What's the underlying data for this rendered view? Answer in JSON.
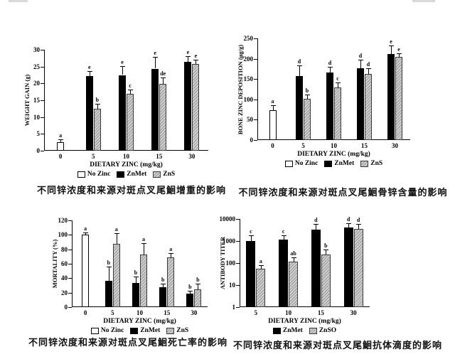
{
  "charts": [
    {
      "id": "weight-gain",
      "type": "bar",
      "yscale": "linear",
      "ylim": [
        0,
        30
      ],
      "yticks": [
        0,
        5,
        10,
        15,
        20,
        25,
        30
      ],
      "ylabel": "WEIGHT GAIN (g)",
      "xlabel": "DIETARY ZINC (mg/kg)",
      "categories": [
        "0",
        "5",
        "10",
        "15",
        "30"
      ],
      "series": [
        {
          "name": "No Zinc",
          "style": "white",
          "values": [
            2.5,
            null,
            null,
            null,
            null
          ],
          "error_tops": [
            3.4,
            null,
            null,
            null,
            null
          ],
          "letters": [
            "a",
            "",
            "",
            "",
            ""
          ]
        },
        {
          "name": "ZnMet",
          "style": "black",
          "values": [
            null,
            22.1,
            22.5,
            24.4,
            26.4
          ],
          "error_tops": [
            null,
            23.6,
            25.2,
            27.8,
            28.1
          ],
          "letters": [
            "",
            "e",
            "e",
            "e",
            "e"
          ]
        },
        {
          "name": "ZnS",
          "style": "hatch",
          "values": [
            null,
            12.5,
            16.9,
            19.9,
            25.7
          ],
          "error_tops": [
            null,
            13.9,
            18.2,
            21.7,
            27.0
          ],
          "letters": [
            "",
            "b",
            "c",
            "de",
            "e"
          ]
        }
      ],
      "legend_position": "bottom",
      "grid": false,
      "caption": "不同锌浓度和来源对斑点叉尾鮰增重的影响"
    },
    {
      "id": "bone-zinc-deposition",
      "type": "bar",
      "yscale": "linear",
      "ylim": [
        0,
        250
      ],
      "yticks": [
        0,
        50,
        100,
        150,
        200,
        250
      ],
      "ylabel": "BONE ZINC DEPOSITION (µg/g)",
      "xlabel": "DIETARY ZINC (mg/kg)",
      "categories": [
        "0",
        "5",
        "10",
        "15",
        "30"
      ],
      "series": [
        {
          "name": "No Zinc",
          "style": "white",
          "values": [
            73,
            null,
            null,
            null,
            null
          ],
          "error_tops": [
            85,
            null,
            null,
            null,
            null
          ],
          "letters": [
            "a",
            "",
            "",
            "",
            ""
          ]
        },
        {
          "name": "ZnMet",
          "style": "black",
          "values": [
            null,
            157,
            166,
            177,
            211
          ],
          "error_tops": [
            null,
            184,
            180,
            198,
            232
          ],
          "letters": [
            "",
            "d",
            "d",
            "d",
            "e"
          ]
        },
        {
          "name": "ZnS",
          "style": "hatch",
          "values": [
            null,
            102,
            129,
            163,
            204
          ],
          "error_tops": [
            null,
            112,
            141,
            176,
            213
          ],
          "letters": [
            "",
            "b",
            "c",
            "d",
            "e"
          ]
        }
      ],
      "legend_position": "bottom",
      "grid": false,
      "caption": "不同锌浓度和来源对斑点叉尾鮰骨锌含量的影响"
    },
    {
      "id": "mortality",
      "type": "bar",
      "yscale": "linear",
      "ylim": [
        0,
        120
      ],
      "yticks": [
        0,
        20,
        40,
        60,
        80,
        100,
        120
      ],
      "ylabel": "MORTALITY (%)",
      "xlabel": "DIETARY ZINC (mg/kg)",
      "categories": [
        "0",
        "5",
        "10",
        "15",
        "30"
      ],
      "series": [
        {
          "name": "No Zinc",
          "style": "white",
          "values": [
            100,
            null,
            null,
            null,
            null
          ],
          "error_tops": [
            103,
            null,
            null,
            null,
            null
          ],
          "letters": [
            "a",
            "",
            "",
            "",
            ""
          ]
        },
        {
          "name": "ZnMet",
          "style": "black",
          "values": [
            null,
            36,
            33,
            28,
            19
          ],
          "error_tops": [
            null,
            56,
            42,
            32,
            23
          ],
          "letters": [
            "",
            "b",
            "b",
            "b",
            "b"
          ]
        },
        {
          "name": "ZnS",
          "style": "hatch",
          "values": [
            null,
            88,
            73,
            69,
            25
          ],
          "error_tops": [
            null,
            102,
            89,
            75,
            32
          ],
          "letters": [
            "",
            "a",
            "a",
            "a",
            "b"
          ]
        }
      ],
      "legend_position": "bottom",
      "grid": false,
      "caption": "不同锌浓度和来源对斑点叉尾鮰死亡率的影响"
    },
    {
      "id": "antibody-titer",
      "type": "bar",
      "yscale": "log",
      "ylim": [
        1,
        10000
      ],
      "yticks": [
        1,
        10,
        100,
        1000,
        10000
      ],
      "ylabel": "ANTIBODY TITER",
      "xlabel": "DIETARY ZINC (mg/kg)",
      "categories": [
        "5",
        "10",
        "15",
        "30"
      ],
      "series": [
        {
          "name": "ZnMet",
          "style": "black",
          "values": [
            1000,
            1200,
            3300,
            4000
          ],
          "error_tops": [
            1800,
            1800,
            5800,
            6500
          ],
          "letters": [
            "c",
            "c",
            "d",
            "d"
          ]
        },
        {
          "name": "ZnSO",
          "style": "hatch",
          "values": [
            55,
            120,
            250,
            3500
          ],
          "error_tops": [
            78,
            175,
            400,
            6000
          ],
          "letters": [
            "a",
            "ab",
            "b",
            "d"
          ]
        }
      ],
      "legend_position": "bottom",
      "grid": false,
      "caption": "不同锌浓度和来源对斑点叉尾鮰抗体滴度的影响"
    }
  ]
}
